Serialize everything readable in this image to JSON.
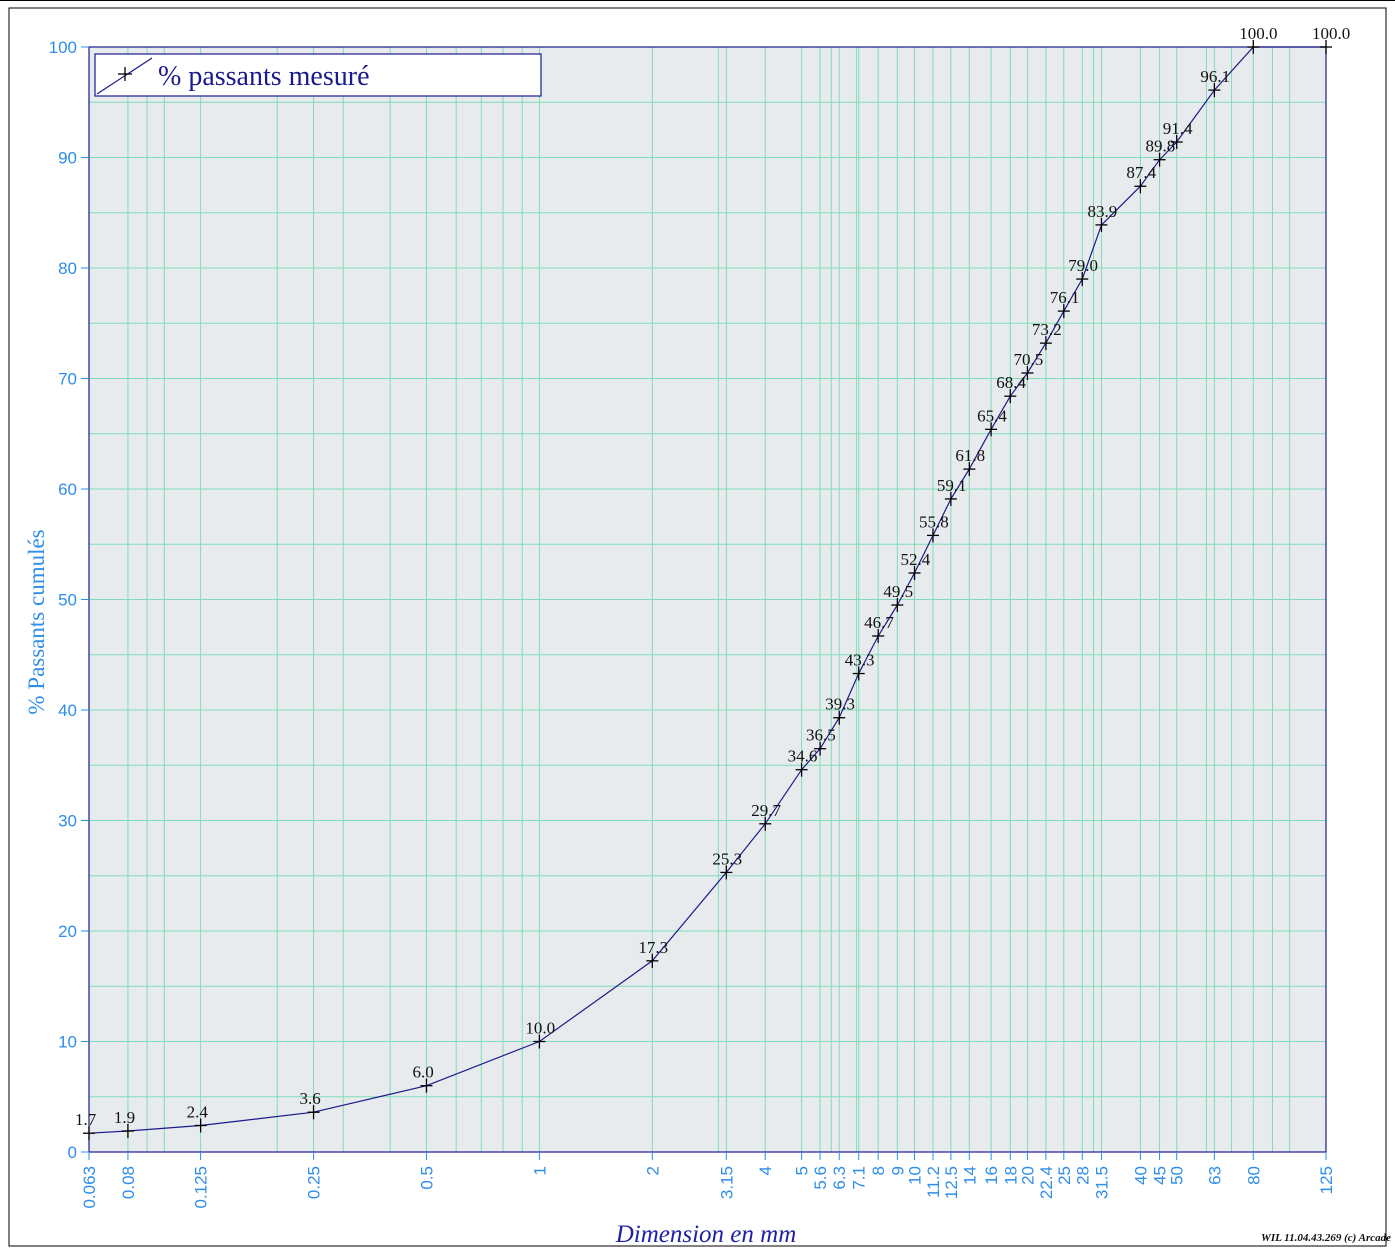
{
  "chart_data": {
    "type": "line",
    "xscale": "log",
    "xlabel": "Dimension en mm",
    "ylabel": "% Passants cumulés",
    "xlim": [
      0.063,
      125
    ],
    "ylim": [
      0,
      100
    ],
    "grid": true,
    "legend_position": "top-left",
    "x_ticks": [
      "0.063",
      "0.08",
      "0.125",
      "0.25",
      "0.5",
      "1",
      "2",
      "3.15",
      "4",
      "5",
      "5.6",
      "6.3",
      "7.1",
      "8",
      "9",
      "10",
      "11.2",
      "12.5",
      "14",
      "16",
      "18",
      "20",
      "22.4",
      "25",
      "28",
      "31.5",
      "40",
      "45",
      "50",
      "63",
      "80",
      "125"
    ],
    "y_ticks": [
      "0",
      "10",
      "20",
      "30",
      "40",
      "50",
      "60",
      "70",
      "80",
      "90",
      "100"
    ],
    "series": [
      {
        "name": "% passants mesuré",
        "color": "#1a1a8c",
        "points": [
          {
            "x": 0.063,
            "y": 1.7,
            "label": "1.7"
          },
          {
            "x": 0.08,
            "y": 1.9,
            "label": "1.9"
          },
          {
            "x": 0.125,
            "y": 2.4,
            "label": "2.4"
          },
          {
            "x": 0.25,
            "y": 3.6,
            "label": "3.6"
          },
          {
            "x": 0.5,
            "y": 6.0,
            "label": "6.0"
          },
          {
            "x": 1,
            "y": 10.0,
            "label": "10.0"
          },
          {
            "x": 2,
            "y": 17.3,
            "label": "17.3"
          },
          {
            "x": 3.15,
            "y": 25.3,
            "label": "25.3"
          },
          {
            "x": 4,
            "y": 29.7,
            "label": "29.7"
          },
          {
            "x": 5,
            "y": 34.6,
            "label": "34.6"
          },
          {
            "x": 5.6,
            "y": 36.5,
            "label": "36.5"
          },
          {
            "x": 6.3,
            "y": 39.3,
            "label": "39.3"
          },
          {
            "x": 7.1,
            "y": 43.3,
            "label": "43.3"
          },
          {
            "x": 8,
            "y": 46.7,
            "label": "46.7"
          },
          {
            "x": 9,
            "y": 49.5,
            "label": "49.5"
          },
          {
            "x": 10,
            "y": 52.4,
            "label": "52.4"
          },
          {
            "x": 11.2,
            "y": 55.8,
            "label": "55.8"
          },
          {
            "x": 12.5,
            "y": 59.1,
            "label": "59.1"
          },
          {
            "x": 14,
            "y": 61.8,
            "label": "61.8"
          },
          {
            "x": 16,
            "y": 65.4,
            "label": "65.4"
          },
          {
            "x": 18,
            "y": 68.4,
            "label": "68.4"
          },
          {
            "x": 20,
            "y": 70.5,
            "label": "70.5"
          },
          {
            "x": 22.4,
            "y": 73.2,
            "label": "73.2"
          },
          {
            "x": 25,
            "y": 76.1,
            "label": "76.1"
          },
          {
            "x": 28,
            "y": 79.0,
            "label": "79.0"
          },
          {
            "x": 31.5,
            "y": 83.9,
            "label": "83.9"
          },
          {
            "x": 40,
            "y": 87.4,
            "label": "87.4"
          },
          {
            "x": 45,
            "y": 89.8,
            "label": "89.8"
          },
          {
            "x": 50,
            "y": 91.4,
            "label": "91.4"
          },
          {
            "x": 63,
            "y": 96.1,
            "label": "96.1"
          },
          {
            "x": 80,
            "y": 100.0,
            "label": "100.0"
          },
          {
            "x": 125,
            "y": 100.0,
            "label": "100.0"
          }
        ]
      }
    ]
  },
  "footer": "WIL 11.04.43.269 (c) Arcade",
  "colors": {
    "plot_background": "#e8ebee",
    "grid": "#7fdcb6",
    "axis_text": "#2f8ee8",
    "curve": "#1a1a8c"
  }
}
